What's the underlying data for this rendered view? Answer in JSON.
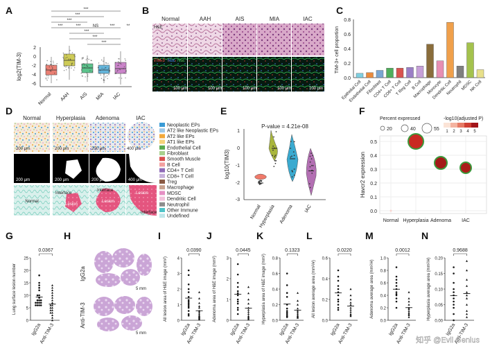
{
  "panel_labels": [
    "A",
    "B",
    "C",
    "D",
    "E",
    "F",
    "G",
    "H",
    "I",
    "J",
    "K",
    "L",
    "M",
    "N"
  ],
  "panelA": {
    "ylabel": "log2(TIM-3)",
    "yticks": [
      "2",
      "0",
      "-2",
      "-4",
      "-6"
    ],
    "groups": [
      "Normal",
      "AAH",
      "AIS",
      "MIA",
      "IAC"
    ],
    "colors": [
      "#e8685a",
      "#c6c23a",
      "#3fb878",
      "#4aa9d6",
      "#c16fc0"
    ],
    "sig": [
      "***",
      "***",
      "***",
      "***",
      "***",
      "NS",
      "***",
      "***",
      "***",
      "***",
      "**"
    ]
  },
  "panelB": {
    "cols": [
      "Normal",
      "AAH",
      "AIS",
      "MIA",
      "IAC"
    ],
    "row1": "H&E",
    "row2_a": "TIM-3",
    "row2_b": "Nuc",
    "row2_c": "Nuc",
    "scale": "100 μm"
  },
  "chart_data": [
    {
      "type": "bar",
      "title": "C",
      "ylabel": "TIM-3+ cell proportion",
      "ylim": [
        0,
        0.8
      ],
      "yticks": [
        "0.8",
        "0.6",
        "0.4",
        "0.2",
        "0.0"
      ],
      "categories": [
        "Epithelial Cell",
        "Endothelial Cell",
        "Fibroblast",
        "CD4+ T Cell",
        "CD8+ T Cell",
        "T Reg Cell",
        "B Cell",
        "Macrophage",
        "Monocyte",
        "Dendritic Cell",
        "Neutrophil",
        "MDSC",
        "NK Cell"
      ],
      "values": [
        0.06,
        0.07,
        0.1,
        0.13,
        0.13,
        0.14,
        0.16,
        0.46,
        0.23,
        0.76,
        0.16,
        0.48,
        0.11
      ],
      "colors": [
        "#7ecfe0",
        "#e98a3c",
        "#7aa6d2",
        "#4fae5b",
        "#d9534f",
        "#9b7fc6",
        "#c6a0d8",
        "#8a6d3b",
        "#e78fb3",
        "#f0a04b",
        "#7f7f7f",
        "#a4c24d",
        "#e8e08a"
      ]
    },
    {
      "type": "violin",
      "title": "E",
      "ylabel": "log10(TIM3)",
      "annotation": "P-value = 4.21e-08",
      "yticks": [
        "1",
        "0",
        "-1",
        "-2",
        "-3"
      ],
      "categories": [
        "Normal",
        "Hyperplasia",
        "Adenoma",
        "IAC"
      ],
      "medians": [
        -2.0,
        0.0,
        -0.6,
        -1.3
      ],
      "colors": [
        "#f07a6a",
        "#a9b63c",
        "#3aaad0",
        "#b36fb3"
      ]
    },
    {
      "type": "scatter",
      "title": "F",
      "ylabel": "Havcr2 expression",
      "size_legend_title": "Percent expressed",
      "size_legend": [
        "20",
        "40",
        "55"
      ],
      "color_legend_title": "-log10(adjusted P)",
      "color_legend": [
        "1",
        "2",
        "3",
        "4",
        "5"
      ],
      "ylim": [
        0,
        0.55
      ],
      "yticks": [
        "0.5",
        "0.4",
        "0.3",
        "0.2",
        "0.1",
        "0.0"
      ],
      "categories": [
        "Normal",
        "Hyperplasia",
        "Adenoma",
        "IAC"
      ],
      "values": [
        0.0,
        0.5,
        0.345,
        0.31
      ]
    },
    {
      "type": "scatter",
      "title": "G",
      "ylabel": "Lung surface lesion number",
      "pvalue": "0.0367",
      "yticks": [
        "25",
        "20",
        "15",
        "10",
        "5",
        "0"
      ],
      "ylim": [
        0,
        25
      ],
      "categories": [
        "IgG2a",
        "Anti-TIM-3"
      ],
      "group1": [
        18,
        15,
        14,
        13,
        12,
        10,
        10,
        9,
        8,
        8,
        8,
        7,
        7,
        7,
        7,
        6,
        6,
        6,
        6
      ],
      "group2": [
        14,
        13,
        12,
        11,
        10,
        9,
        8,
        7,
        6,
        6,
        5,
        5,
        4,
        4,
        3,
        3,
        2,
        1,
        0
      ]
    },
    {
      "type": "scatter",
      "title": "I",
      "ylabel": "All lesion area of H&E image (mm²)",
      "pvalue": "0.0390",
      "yticks": [
        "4",
        "3",
        "2",
        "1",
        "0"
      ],
      "ylim": [
        0,
        4
      ],
      "categories": [
        "IgG2a",
        "Anti-TIM-3"
      ],
      "group1": [
        3.2,
        2.9,
        2.3,
        2.0,
        1.8,
        1.5,
        1.3,
        1.2,
        1.1,
        1.0,
        0.9,
        0.8,
        0.6,
        0.4,
        0.3
      ],
      "group2": [
        1.8,
        1.4,
        1.1,
        0.9,
        0.8,
        0.6,
        0.5,
        0.4,
        0.3,
        0.25,
        0.2,
        0.15,
        0.1,
        0.05
      ]
    },
    {
      "type": "scatter",
      "title": "J",
      "ylabel": "Adenoma area of H&E image (mm²)",
      "pvalue": "0.0445",
      "yticks": [
        "3",
        "2",
        "1",
        "0"
      ],
      "ylim": [
        0,
        3
      ],
      "categories": [
        "IgG2a",
        "Anti-TIM-3"
      ],
      "group1": [
        2.7,
        2.2,
        1.8,
        1.6,
        1.4,
        1.3,
        1.2,
        1.0,
        0.9,
        0.8,
        0.6,
        0.5,
        0.3
      ],
      "group2": [
        1.6,
        1.3,
        1.0,
        0.8,
        0.6,
        0.5,
        0.4,
        0.3,
        0.2,
        0.15,
        0.1,
        0.05
      ]
    },
    {
      "type": "scatter",
      "title": "K",
      "ylabel": "Hyperplasia area of H&E image (mm²)",
      "pvalue": "0.1323",
      "yticks": [
        "0.8",
        "0.6",
        "0.4",
        "0.2",
        "0.0"
      ],
      "ylim": [
        0,
        0.8
      ],
      "categories": [
        "IgG2a",
        "Anti-TIM-3"
      ],
      "group1": [
        0.6,
        0.45,
        0.35,
        0.3,
        0.2,
        0.15,
        0.12,
        0.1,
        0.08,
        0.06,
        0.05,
        0.04
      ],
      "group2": [
        0.35,
        0.25,
        0.2,
        0.15,
        0.12,
        0.1,
        0.08,
        0.06,
        0.05,
        0.04,
        0.03
      ]
    },
    {
      "type": "scatter",
      "title": "L",
      "ylabel": "All lesion average area (mm²/#)",
      "pvalue": "0.0220",
      "yticks": [
        "0.6",
        "0.4",
        "0.2",
        "0.0"
      ],
      "ylim": [
        0,
        0.6
      ],
      "categories": [
        "IgG2a",
        "Anti-TIM-3"
      ],
      "group1": [
        0.48,
        0.42,
        0.38,
        0.33,
        0.3,
        0.27,
        0.24,
        0.2,
        0.18,
        0.15,
        0.12,
        0.1
      ],
      "group2": [
        0.3,
        0.24,
        0.2,
        0.17,
        0.15,
        0.12,
        0.1,
        0.08,
        0.06,
        0.05,
        0.04
      ]
    },
    {
      "type": "scatter",
      "title": "M",
      "ylabel": "Adenoma average area (mm²/#)",
      "pvalue": "0.0012",
      "yticks": [
        "1.0",
        "0.8",
        "0.6",
        "0.4",
        "0.2",
        "0.0"
      ],
      "ylim": [
        0,
        1.0
      ],
      "categories": [
        "IgG2a",
        "Anti-TIM-3"
      ],
      "group1": [
        0.85,
        0.7,
        0.65,
        0.6,
        0.55,
        0.5,
        0.45,
        0.42,
        0.4,
        0.35,
        0.3,
        0.2
      ],
      "group2": [
        0.45,
        0.35,
        0.3,
        0.25,
        0.2,
        0.18,
        0.15,
        0.12,
        0.1,
        0.08,
        0.05
      ]
    },
    {
      "type": "scatter",
      "title": "N",
      "ylabel": "Hyperplasia average area (mm²/#)",
      "pvalue": "0.9688",
      "yticks": [
        "0.20",
        "0.15",
        "0.10",
        "0.05",
        "0.00"
      ],
      "ylim": [
        0,
        0.2
      ],
      "categories": [
        "IgG2a",
        "Anti-TIM-3"
      ],
      "group1": [
        0.17,
        0.15,
        0.12,
        0.1,
        0.09,
        0.08,
        0.07,
        0.06,
        0.05,
        0.04,
        0.02,
        0.0
      ],
      "group2": [
        0.19,
        0.16,
        0.13,
        0.11,
        0.09,
        0.08,
        0.07,
        0.05,
        0.03,
        0.02,
        0.01
      ]
    }
  ],
  "panelD": {
    "cols": [
      "Normal",
      "Hyperplasia",
      "Adenoma",
      "IAC"
    ],
    "scales": [
      "200 μm",
      "200 μm",
      "200 μm",
      "400 μm"
    ],
    "row3_labels": [
      "Normal",
      "Interface",
      "Lesion",
      "Interface",
      "Lesion",
      "Lesion",
      "Interface"
    ],
    "legend": [
      {
        "label": "Neoplastic EPs",
        "color": "#3a9bd6"
      },
      {
        "label": "AT2 like Neoplastic EPs",
        "color": "#9fc9e8"
      },
      {
        "label": "AT2 like EPs",
        "color": "#f2a93b"
      },
      {
        "label": "AT1 like EPs",
        "color": "#f6d37a"
      },
      {
        "label": "Endothelial Cell",
        "color": "#5aaa4e"
      },
      {
        "label": "Fibroblast",
        "color": "#a9d08e"
      },
      {
        "label": "Smooth Muscle",
        "color": "#d94f4f"
      },
      {
        "label": "B Cell",
        "color": "#f2a0a0"
      },
      {
        "label": "CD4+ T Cell",
        "color": "#8f6bb8"
      },
      {
        "label": "CD8+ T Cell",
        "color": "#c9b3dc"
      },
      {
        "label": "Treg",
        "color": "#8a5a44"
      },
      {
        "label": "Macrophage",
        "color": "#c9a28e"
      },
      {
        "label": "MDSC",
        "color": "#e58fc4"
      },
      {
        "label": "Dendritic Cell",
        "color": "#f3c1dc"
      },
      {
        "label": "Neutrophil",
        "color": "#8c8c8c"
      },
      {
        "label": "Other Immune",
        "color": "#4fc3c8"
      },
      {
        "label": "Undefined",
        "color": "#bfe6ea"
      }
    ]
  },
  "panelH": {
    "row1": "IgG2a",
    "row2": "Anti-TIM-3",
    "scale": "5 mm"
  },
  "watermark": "知乎 @Evil Genius"
}
